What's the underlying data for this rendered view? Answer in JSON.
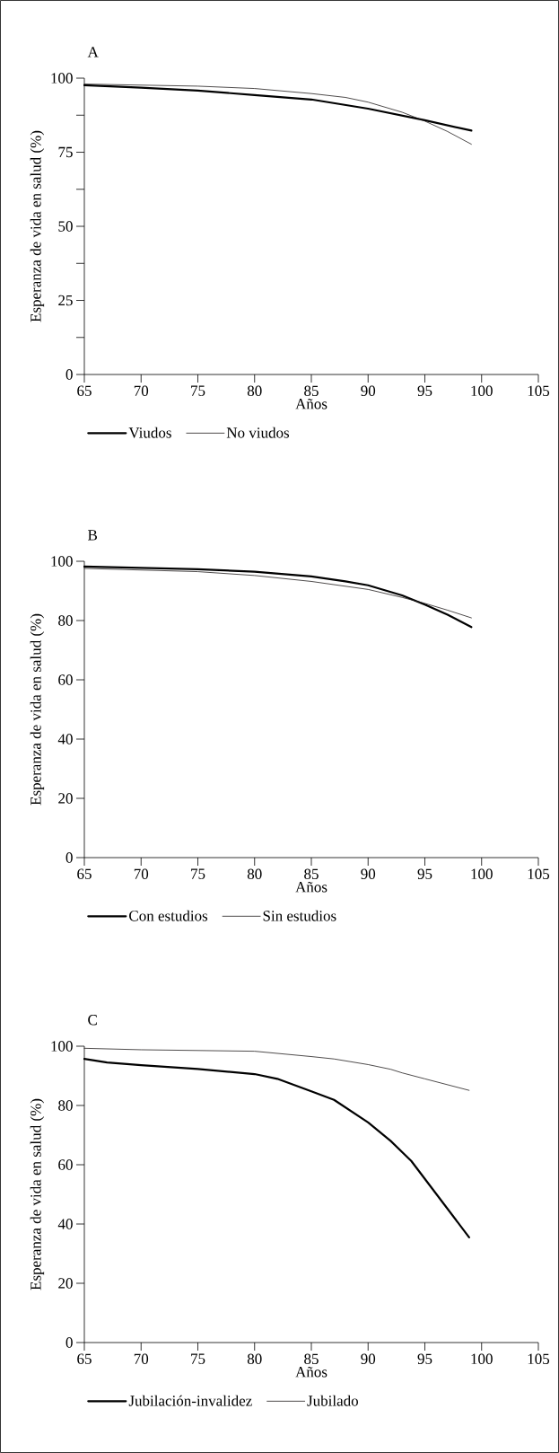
{
  "chart_data": [
    {
      "type": "line",
      "title": "A",
      "xlabel": "Años",
      "ylabel": "Esperanza de vida en salud (%)",
      "xlim": [
        65,
        105
      ],
      "ylim": [
        0,
        100
      ],
      "xticks": [
        65,
        70,
        75,
        80,
        85,
        90,
        95,
        100,
        105
      ],
      "yticks": [
        0,
        {
          "value": 12.5,
          "label": null
        },
        25,
        {
          "value": 37.5,
          "label": null
        },
        50,
        {
          "value": 62.5,
          "label": null
        },
        75,
        {
          "value": 87.5,
          "label": null
        },
        100
      ],
      "legend": "bottom",
      "series": [
        {
          "name": "Viudos",
          "color": "#000000",
          "x": [
            65,
            70,
            75,
            80,
            85,
            90,
            95,
            99.1
          ],
          "values": [
            97.6,
            96.8,
            95.8,
            94.3,
            92.8,
            89.7,
            85.8,
            82.3
          ]
        },
        {
          "name": "No viudos",
          "color": "#231f20",
          "x": [
            65,
            75,
            80,
            85,
            88,
            90,
            93,
            95,
            97,
            99.1
          ],
          "values": [
            98.0,
            97.3,
            96.5,
            94.8,
            93.5,
            91.9,
            88.5,
            85.5,
            82.0,
            77.7
          ]
        }
      ]
    },
    {
      "type": "line",
      "title": "B",
      "xlabel": "Años",
      "ylabel": "Esperanza de vida en salud (%)",
      "xlim": [
        65,
        105
      ],
      "ylim": [
        0,
        100
      ],
      "xticks": [
        65,
        70,
        75,
        80,
        85,
        90,
        95,
        100,
        105
      ],
      "yticks": [
        0,
        20,
        40,
        60,
        80,
        100
      ],
      "legend": "bottom",
      "series": [
        {
          "name": "Con estudios",
          "color": "#000000",
          "x": [
            65,
            75,
            80,
            85,
            88,
            90,
            93,
            95,
            97,
            99.1
          ],
          "values": [
            98.2,
            97.3,
            96.5,
            94.9,
            93.2,
            91.9,
            88.5,
            85.4,
            82.0,
            77.8
          ]
        },
        {
          "name": "Sin estudios",
          "color": "#231f20",
          "x": [
            65,
            75,
            80,
            85,
            90,
            93,
            95,
            97,
            99.1
          ],
          "values": [
            97.6,
            96.5,
            95.2,
            93.2,
            90.5,
            87.8,
            85.8,
            83.5,
            80.9
          ]
        }
      ]
    },
    {
      "type": "line",
      "title": "C",
      "xlabel": "Años",
      "ylabel": "Esperanza de vida en salud (%)",
      "xlim": [
        65,
        105
      ],
      "ylim": [
        0,
        100
      ],
      "xticks": [
        65,
        70,
        75,
        80,
        85,
        90,
        95,
        100,
        105
      ],
      "yticks": [
        0,
        20,
        40,
        60,
        80,
        100
      ],
      "legend": "bottom",
      "series": [
        {
          "name": "Jubilación-invalidez",
          "color": "#000000",
          "x": [
            65,
            67,
            70,
            75,
            80,
            82,
            85,
            87,
            90,
            92,
            93.8,
            98.9
          ],
          "values": [
            95.7,
            94.5,
            93.6,
            92.3,
            90.6,
            89.0,
            84.8,
            81.9,
            74.3,
            68.0,
            61.3,
            35.5
          ]
        },
        {
          "name": "Jubilado",
          "color": "#231f20",
          "x": [
            65,
            70,
            80,
            85,
            87,
            90,
            92,
            93,
            95,
            98.9
          ],
          "values": [
            99.3,
            98.8,
            98.3,
            96.5,
            95.7,
            93.8,
            92.2,
            91.0,
            89.0,
            85.1
          ]
        }
      ]
    }
  ]
}
